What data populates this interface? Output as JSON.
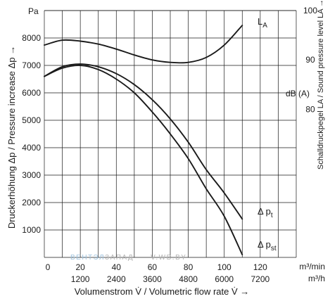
{
  "chart_data": {
    "type": "line",
    "ylabel_unit": "Pa",
    "ylabel": "Druckerhöhung Δp / Pressure increase Δp →",
    "xlabel": "Volumenstrom V̇ / Volumetric flow rate V̇ →",
    "y2label_unit": "dB (A)",
    "y2label": "Schalldruckpegel LA / Sound pressure level LA →",
    "x_unit_top": "m³/min",
    "x_unit_bottom": "m³/h",
    "xlim": [
      0,
      140
    ],
    "ylim": [
      0,
      9000
    ],
    "y2lim": [
      50,
      100
    ],
    "grid": true,
    "x_ticks": [
      0,
      20,
      40,
      60,
      80,
      100,
      120
    ],
    "x_ticks_secondary": [
      1200,
      2400,
      3600,
      4800,
      6000,
      7200
    ],
    "y_ticks": [
      1000,
      2000,
      3000,
      4000,
      5000,
      6000,
      7000,
      8000
    ],
    "y2_ticks": [
      80,
      90,
      100
    ],
    "series": [
      {
        "name": "Δ pt",
        "axis": "left",
        "x": [
          0,
          10,
          20,
          30,
          40,
          50,
          60,
          70,
          80,
          90,
          100,
          110
        ],
        "values": [
          6600,
          6950,
          7050,
          6950,
          6700,
          6300,
          5750,
          5050,
          4200,
          3200,
          2350,
          1400
        ]
      },
      {
        "name": "Δ pst",
        "axis": "left",
        "x": [
          0,
          10,
          20,
          30,
          40,
          50,
          60,
          70,
          80,
          90,
          100,
          110
        ],
        "values": [
          6600,
          6900,
          7000,
          6850,
          6500,
          6000,
          5300,
          4500,
          3600,
          2500,
          1500,
          100
        ]
      },
      {
        "name": "LA",
        "axis": "right",
        "x": [
          0,
          10,
          20,
          30,
          40,
          50,
          60,
          70,
          80,
          90,
          100,
          110
        ],
        "values": [
          93,
          94,
          93.8,
          93.2,
          92.2,
          91,
          90,
          89.5,
          89.5,
          90.5,
          93,
          97
        ]
      }
    ],
    "curve_labels": [
      {
        "main": "L",
        "sub": "A"
      },
      {
        "main": "Δ p",
        "sub": "t"
      },
      {
        "main": "Δ p",
        "sub": "st"
      }
    ],
    "watermark": {
      "text1": "ВЕНТЭЛ",
      "text2": "ЗАПАД",
      "text3": "V.WB.BY",
      "color1": "#9fc3de",
      "color2": "#b3b3b3"
    },
    "colors": {
      "line": "#1a1a1a",
      "grid": "#1a1a1a"
    }
  }
}
